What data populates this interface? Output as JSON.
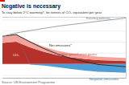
{
  "chart_data": {
    "type": "area",
    "title": "Negative is necessary",
    "subtitle": "To stay below 2°C warming†, bn tonnes of CO₂ equivalent per year",
    "source": "Source: UN Environment Programme",
    "stacked": true,
    "grid": true,
    "tick_labels": false,
    "x": [
      2010,
      2020,
      2030,
      2040,
      2050,
      2060,
      2070,
      2080,
      2090,
      2100
    ],
    "xlim": [
      2010,
      2100
    ],
    "ylim": [
      -25,
      85
    ],
    "yticks": [
      -20,
      0,
      20,
      40,
      60,
      80
    ],
    "series": [
      {
        "name": "CO₂",
        "type": "area",
        "color": "#b5322a",
        "values": [
          38,
          40,
          30,
          22,
          16,
          12,
          9,
          7,
          6,
          5
        ]
      },
      {
        "name": "Other greenhouse gases",
        "type": "area",
        "color": "#f2a39b",
        "values": [
          12,
          13,
          11,
          9,
          8,
          7,
          7,
          6,
          6,
          6
        ]
      },
      {
        "name": "Negative emissions",
        "type": "area",
        "color": "#4f9fd6",
        "values": [
          0,
          0,
          -1,
          -3,
          -6,
          -9,
          -12,
          -14,
          -15,
          -16
        ]
      },
      {
        "name": "Net emissions*",
        "type": "line",
        "color": "#2b2b2b",
        "line_style": "solid",
        "values": [
          50,
          53,
          40,
          28,
          18,
          10,
          4,
          -1,
          -3,
          -5
        ]
      },
      {
        "name": "Existing policies",
        "type": "line",
        "color": "#9aa2a8",
        "line_style": "solid",
        "values": [
          50,
          56,
          60,
          64,
          68,
          71,
          74,
          77,
          80,
          83
        ]
      }
    ]
  }
}
